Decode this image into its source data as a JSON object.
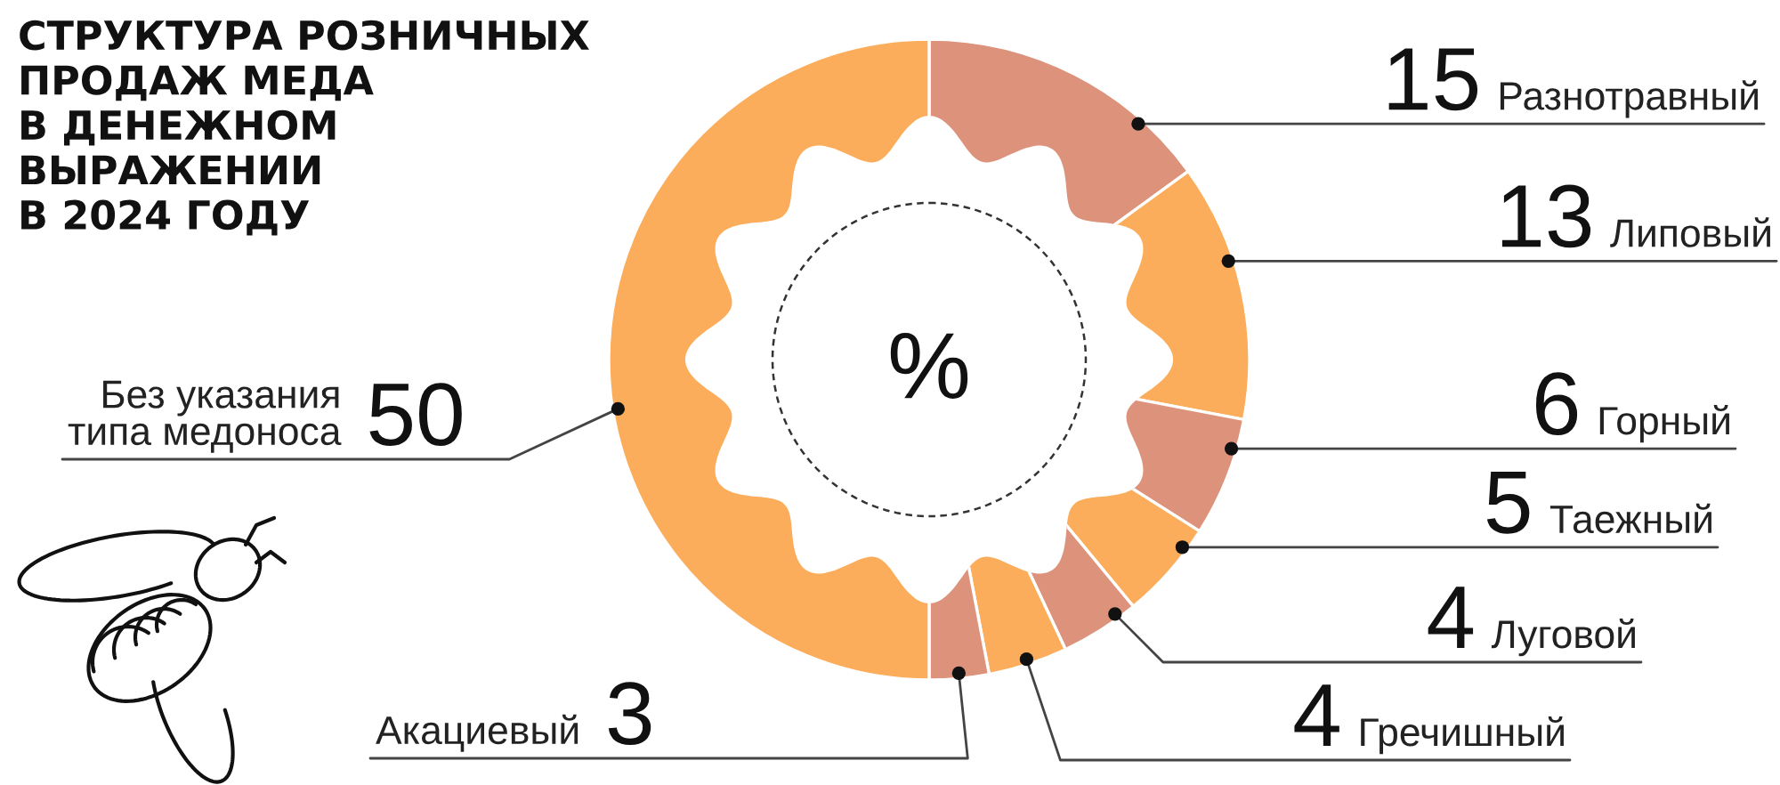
{
  "chart_data": {
    "type": "donut",
    "title": "СТРУКТУРА РОЗНИЧНЫХ\nПРОДАЖ МЕДА\nВ ДЕНЕЖНОМ\nВЫРАЖЕНИИ\nВ 2024 ГОДУ",
    "categories": [
      "Разнотравный",
      "Липовый",
      "Горный",
      "Таежный",
      "Луговой",
      "Гречишный",
      "Акациевый",
      "Без указания\nтипа медоноса"
    ],
    "values": [
      15,
      13,
      6,
      5,
      4,
      4,
      3,
      50
    ],
    "colors": [
      "#dd937b",
      "#fbad5b",
      "#dd937b",
      "#fbad5b",
      "#dd937b",
      "#fbad5b",
      "#dd937b",
      "#fbad5b"
    ],
    "annotations": [
      "%"
    ],
    "data_labels": true
  }
}
